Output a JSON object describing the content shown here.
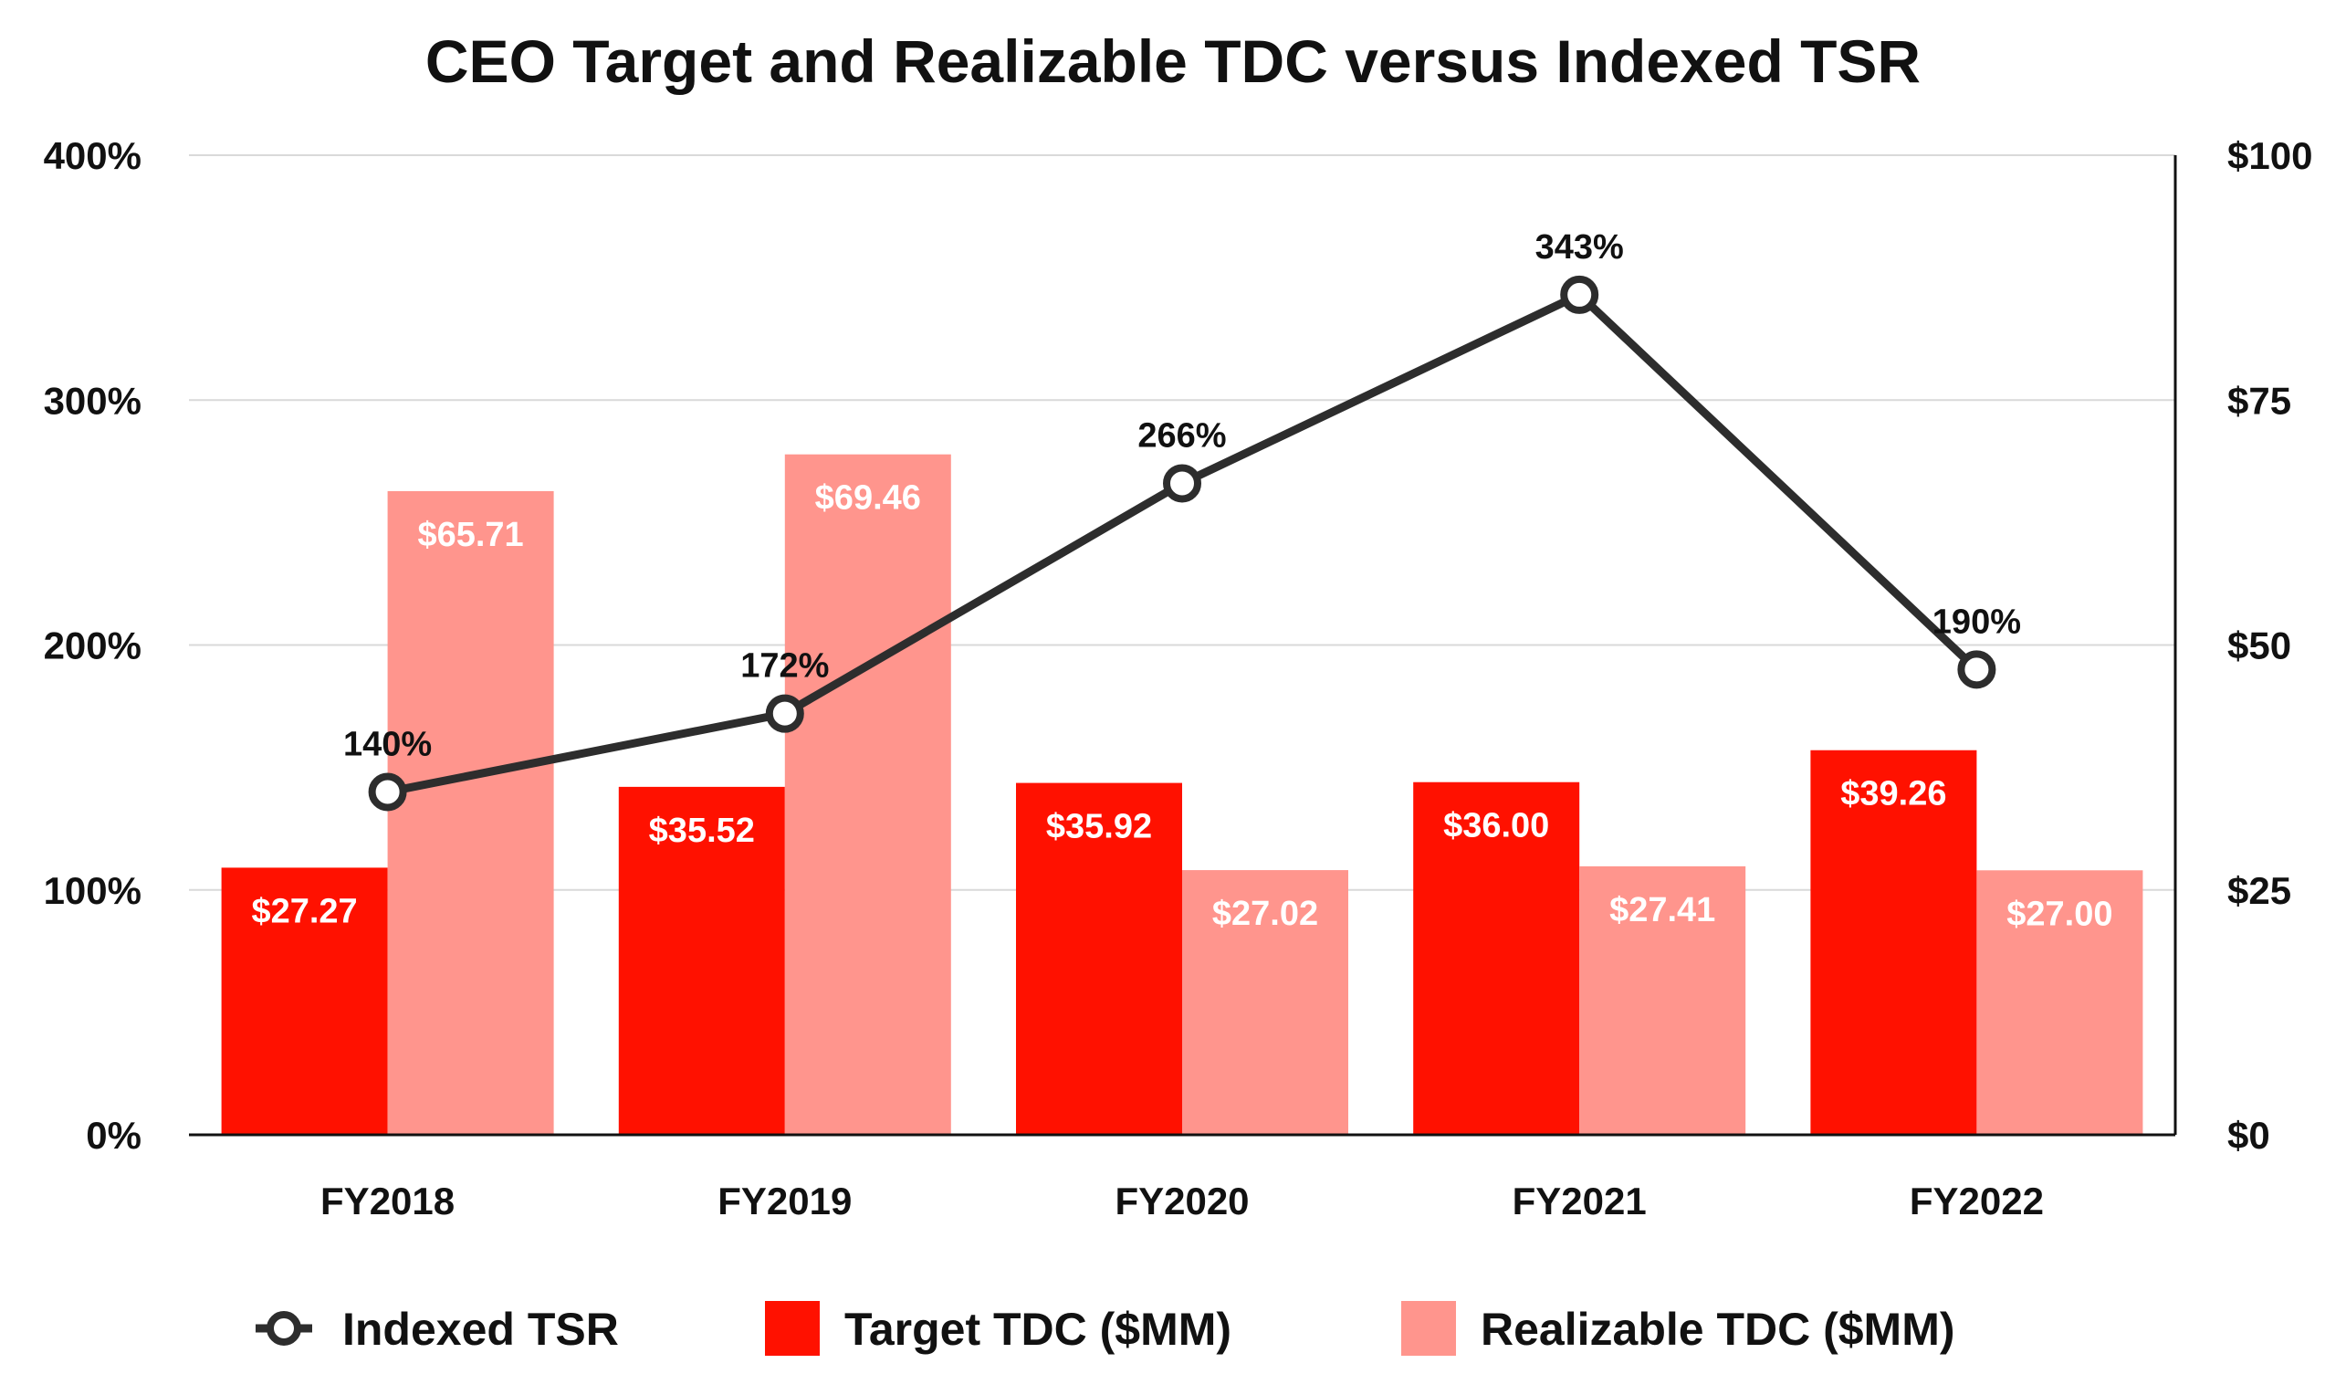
{
  "chart_data": {
    "type": "bar+line",
    "title": "CEO Target and Realizable TDC versus Indexed TSR",
    "categories": [
      "FY2018",
      "FY2019",
      "FY2020",
      "FY2021",
      "FY2022"
    ],
    "series": [
      {
        "name": "Target TDC ($MM)",
        "kind": "bar",
        "axis": "right",
        "color": "#FF1100",
        "values": [
          27.27,
          35.52,
          35.92,
          36.0,
          39.26
        ],
        "labels": [
          "$27.27",
          "$35.52",
          "$35.92",
          "$36.00",
          "$39.26"
        ]
      },
      {
        "name": "Realizable TDC ($MM)",
        "kind": "bar",
        "axis": "right",
        "color": "#FF958D",
        "values": [
          65.71,
          69.46,
          27.02,
          27.41,
          27.0
        ],
        "labels": [
          "$65.71",
          "$69.46",
          "$27.02",
          "$27.41",
          "$27.00"
        ]
      },
      {
        "name": "Indexed TSR",
        "kind": "line",
        "axis": "left",
        "color": "#2D2D2D",
        "values": [
          140,
          172,
          266,
          343,
          190
        ],
        "labels": [
          "140%",
          "172%",
          "266%",
          "343%",
          "190%"
        ]
      }
    ],
    "left_axis": {
      "range": [
        0,
        400
      ],
      "ticks": [
        0,
        100,
        200,
        300,
        400
      ],
      "tick_labels": [
        "0%",
        "100%",
        "200%",
        "300%",
        "400%"
      ]
    },
    "right_axis": {
      "range": [
        0,
        100
      ],
      "ticks": [
        0,
        25,
        50,
        75,
        100
      ],
      "tick_labels": [
        "$0",
        "$25",
        "$50",
        "$75",
        "$100"
      ]
    },
    "grid": true,
    "legend_position": "bottom",
    "legend": [
      "Indexed TSR",
      "Target TDC ($MM)",
      "Realizable TDC ($MM)"
    ],
    "gridline_color": "#D9D9D9",
    "axis_color": "#111111"
  }
}
